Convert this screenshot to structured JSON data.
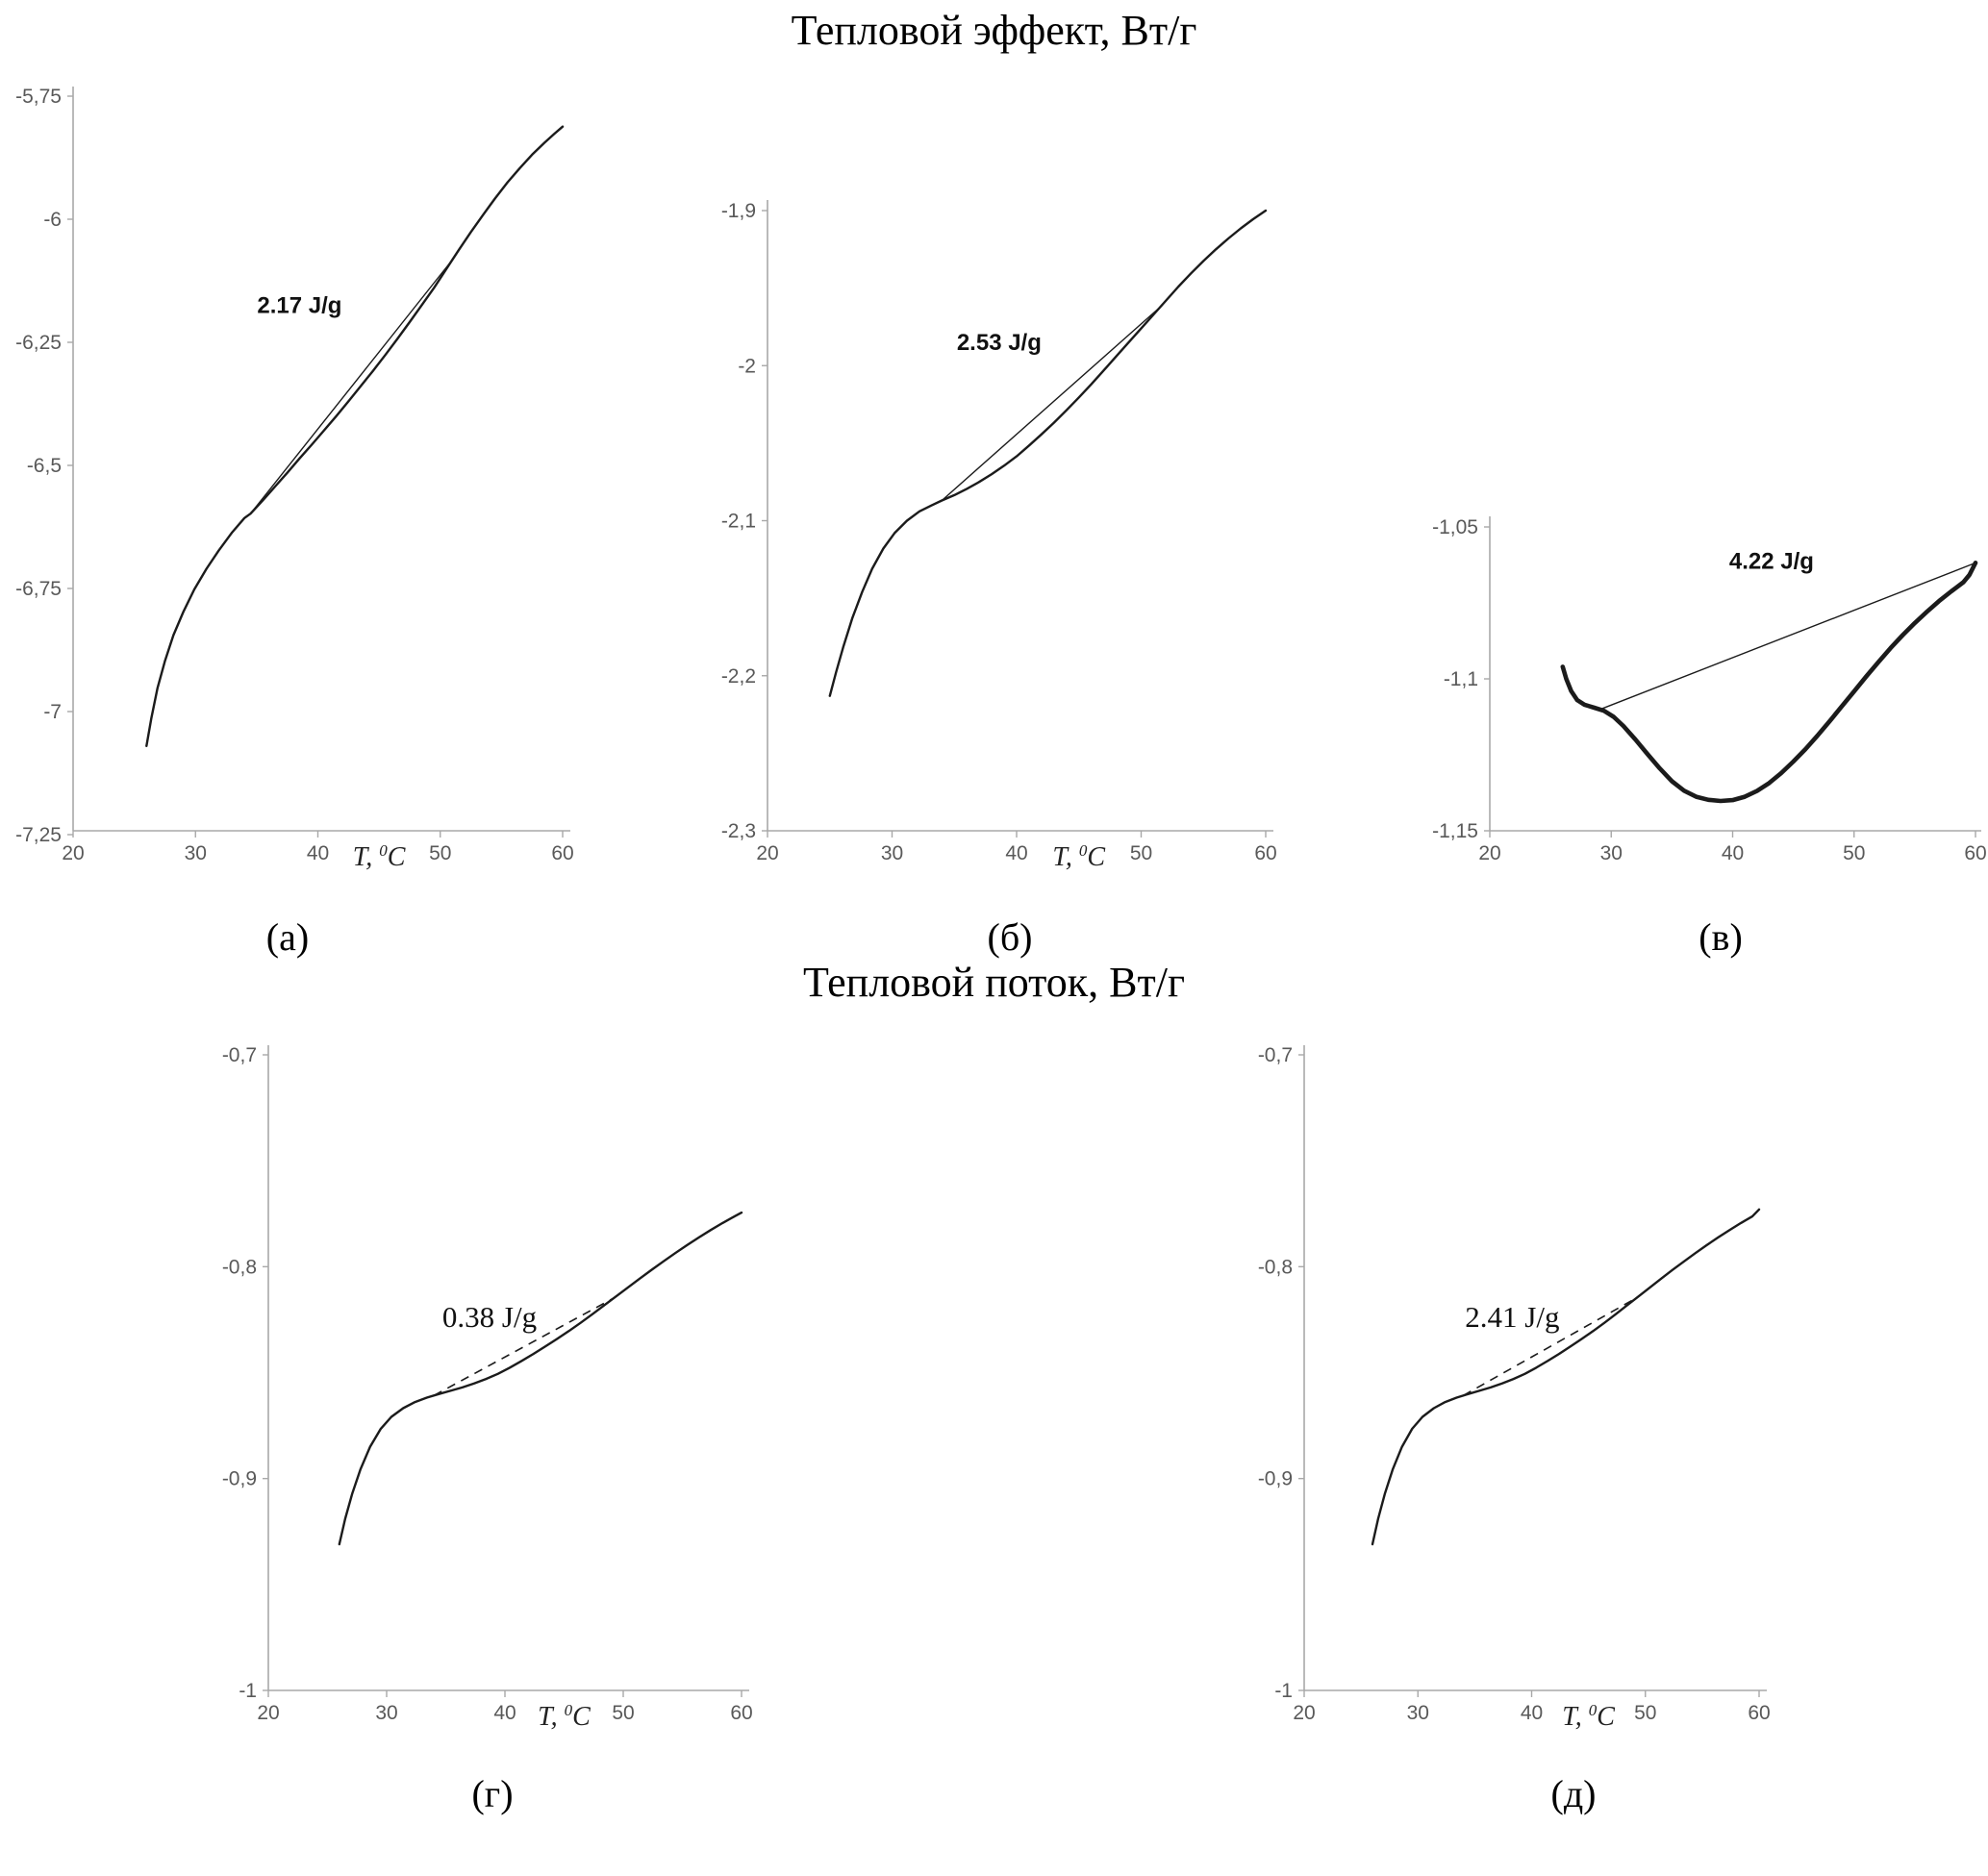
{
  "page": {
    "section1_title": "Тепловой эффект, Вт/г",
    "section2_title": "Тепловой поток, Вт/г"
  },
  "chart_data": [
    {
      "id": "a",
      "panel_label": "(а)",
      "type": "line",
      "xlabel": "T, ⁰C",
      "ylabel": "",
      "xlim": [
        20,
        60
      ],
      "ylim": [
        -7.25,
        -5.75
      ],
      "xticks": [
        20,
        30,
        40,
        50,
        60
      ],
      "yticks": [
        {
          "v": -5.75,
          "label": "-5,75"
        },
        {
          "v": -6,
          "label": "-6"
        },
        {
          "v": -6.25,
          "label": "-6,25"
        },
        {
          "v": -6.5,
          "label": "-6,5"
        },
        {
          "v": -6.75,
          "label": "-6,75"
        },
        {
          "v": -7,
          "label": "-7"
        },
        {
          "v": -7.25,
          "label": "-7,25"
        }
      ],
      "annotation": {
        "text": "2.17 J/g",
        "x": 38.5,
        "y": -6.19,
        "style": "sans-bold"
      },
      "series": [
        {
          "name": "dsc-curve",
          "style": "solid",
          "width": 2.4,
          "points": [
            [
              26,
              -7.07
            ],
            [
              26.4,
              -7.013
            ],
            [
              26.9,
              -6.952
            ],
            [
              27.5,
              -6.898
            ],
            [
              28.2,
              -6.845
            ],
            [
              29,
              -6.798
            ],
            [
              29.9,
              -6.752
            ],
            [
              30.9,
              -6.71
            ],
            [
              31.9,
              -6.673
            ],
            [
              33,
              -6.636
            ],
            [
              34,
              -6.607
            ],
            [
              34.5,
              -6.598
            ],
            [
              35.5,
              -6.571
            ],
            [
              36.5,
              -6.543
            ],
            [
              37.5,
              -6.515
            ],
            [
              38.5,
              -6.486
            ],
            [
              39.5,
              -6.458
            ],
            [
              40.5,
              -6.429
            ],
            [
              41.5,
              -6.4
            ],
            [
              42.5,
              -6.37
            ],
            [
              43.5,
              -6.339
            ],
            [
              44.5,
              -6.308
            ],
            [
              45.5,
              -6.276
            ],
            [
              46.5,
              -6.243
            ],
            [
              47.5,
              -6.209
            ],
            [
              48.5,
              -6.174
            ],
            [
              49.5,
              -6.139
            ],
            [
              50.5,
              -6.101
            ],
            [
              51.5,
              -6.063
            ],
            [
              52.5,
              -6.026
            ],
            [
              53.5,
              -5.991
            ],
            [
              54.5,
              -5.957
            ],
            [
              55.5,
              -5.925
            ],
            [
              56.5,
              -5.896
            ],
            [
              57.5,
              -5.869
            ],
            [
              58.5,
              -5.845
            ],
            [
              59.3,
              -5.827
            ],
            [
              60,
              -5.812
            ]
          ]
        },
        {
          "name": "integration-baseline",
          "style": "solid",
          "width": 1.4,
          "points": [
            [
              34.5,
              -6.598
            ],
            [
              51,
              -6.082
            ]
          ]
        }
      ]
    },
    {
      "id": "b",
      "panel_label": "(б)",
      "type": "line",
      "xlabel": "T, ⁰C",
      "ylabel": "",
      "xlim": [
        20,
        60
      ],
      "ylim": [
        -2.3,
        -1.9
      ],
      "xticks": [
        20,
        30,
        40,
        50,
        60
      ],
      "yticks": [
        {
          "v": -1.9,
          "label": "-1,9"
        },
        {
          "v": -2,
          "label": "-2"
        },
        {
          "v": -2.1,
          "label": "-2,1"
        },
        {
          "v": -2.2,
          "label": "-2,2"
        },
        {
          "v": -2.3,
          "label": "-2,3"
        }
      ],
      "annotation": {
        "text": "2.53 J/g",
        "x": 38.6,
        "y": -1.99,
        "style": "sans-bold"
      },
      "series": [
        {
          "name": "dsc-curve",
          "style": "solid",
          "width": 2.4,
          "points": [
            [
              25,
              -2.213
            ],
            [
              25.5,
              -2.198
            ],
            [
              26.1,
              -2.181
            ],
            [
              26.8,
              -2.163
            ],
            [
              27.6,
              -2.146
            ],
            [
              28.4,
              -2.131
            ],
            [
              29.3,
              -2.118
            ],
            [
              30.2,
              -2.108
            ],
            [
              31.2,
              -2.1
            ],
            [
              32.2,
              -2.094
            ],
            [
              33.2,
              -2.09
            ],
            [
              34,
              -2.087
            ],
            [
              35,
              -2.0835
            ],
            [
              36,
              -2.0795
            ],
            [
              37,
              -2.075
            ],
            [
              38,
              -2.07
            ],
            [
              39,
              -2.0645
            ],
            [
              40,
              -2.0585
            ],
            [
              41,
              -2.0515
            ],
            [
              42,
              -2.0443
            ],
            [
              43,
              -2.0368
            ],
            [
              44,
              -2.0288
            ],
            [
              45,
              -2.0205
            ],
            [
              46,
              -2.012
            ],
            [
              47,
              -2.003
            ],
            [
              48,
              -1.994
            ],
            [
              49,
              -1.985
            ],
            [
              50,
              -1.976
            ],
            [
              51,
              -1.967
            ],
            [
              52,
              -1.958
            ],
            [
              53,
              -1.949
            ],
            [
              54,
              -1.9405
            ],
            [
              55,
              -1.9325
            ],
            [
              56,
              -1.925
            ],
            [
              57,
              -1.918
            ],
            [
              58,
              -1.9115
            ],
            [
              59,
              -1.9055
            ],
            [
              60,
              -1.9
            ]
          ]
        },
        {
          "name": "integration-baseline",
          "style": "solid",
          "width": 1.4,
          "points": [
            [
              34,
              -2.087
            ],
            [
              51.7,
              -1.961
            ]
          ]
        }
      ]
    },
    {
      "id": "v",
      "panel_label": "(в)",
      "type": "line",
      "xlabel": "",
      "ylabel": "",
      "xlim": [
        20,
        60
      ],
      "ylim": [
        -1.15,
        -1.05
      ],
      "xticks": [
        20,
        30,
        40,
        50,
        60
      ],
      "yticks": [
        {
          "v": -1.05,
          "label": "-1,05"
        },
        {
          "v": -1.1,
          "label": "-1,1"
        },
        {
          "v": -1.15,
          "label": "-1,15"
        }
      ],
      "annotation": {
        "text": "4.22 J/g",
        "x": 43.2,
        "y": -1.0638,
        "style": "sans-bold"
      },
      "series": [
        {
          "name": "dsc-curve",
          "style": "solid",
          "width": 4.6,
          "points": [
            [
              26,
              -1.096
            ],
            [
              26.3,
              -1.1
            ],
            [
              26.7,
              -1.104
            ],
            [
              27.2,
              -1.107
            ],
            [
              27.8,
              -1.1085
            ],
            [
              28.6,
              -1.1095
            ],
            [
              29.4,
              -1.1105
            ],
            [
              30.2,
              -1.1125
            ],
            [
              31,
              -1.1155
            ],
            [
              32,
              -1.12
            ],
            [
              33,
              -1.1248
            ],
            [
              34,
              -1.1295
            ],
            [
              35,
              -1.1337
            ],
            [
              36,
              -1.1368
            ],
            [
              37,
              -1.1388
            ],
            [
              38,
              -1.1398
            ],
            [
              39,
              -1.1402
            ],
            [
              40,
              -1.1399
            ],
            [
              41,
              -1.1388
            ],
            [
              42,
              -1.1369
            ],
            [
              43,
              -1.1343
            ],
            [
              44,
              -1.131
            ],
            [
              45,
              -1.1272
            ],
            [
              46,
              -1.1231
            ],
            [
              47,
              -1.1186
            ],
            [
              48,
              -1.1139
            ],
            [
              49,
              -1.109
            ],
            [
              50,
              -1.1041
            ],
            [
              51,
              -1.0992
            ],
            [
              52,
              -1.0945
            ],
            [
              53,
              -1.0899
            ],
            [
              54,
              -1.0856
            ],
            [
              55,
              -1.0816
            ],
            [
              56,
              -1.0779
            ],
            [
              57,
              -1.0744
            ],
            [
              58,
              -1.0712
            ],
            [
              59,
              -1.0682
            ],
            [
              59.5,
              -1.0658
            ],
            [
              60,
              -1.0618
            ]
          ]
        },
        {
          "name": "integration-baseline",
          "style": "solid",
          "width": 1.4,
          "points": [
            [
              29,
              -1.1102
            ],
            [
              59.9,
              -1.062
            ]
          ]
        }
      ]
    },
    {
      "id": "g",
      "panel_label": "(г)",
      "type": "line",
      "xlabel": "T, ⁰C",
      "ylabel": "",
      "xlim": [
        20,
        60
      ],
      "ylim": [
        -1,
        -0.7
      ],
      "xticks": [
        20,
        30,
        40,
        50,
        60
      ],
      "yticks": [
        {
          "v": -0.7,
          "label": "-0,7"
        },
        {
          "v": -0.8,
          "label": "-0,8"
        },
        {
          "v": -0.9,
          "label": "-0,9"
        },
        {
          "v": -1,
          "label": "-1"
        }
      ],
      "annotation": {
        "text": "0.38 J/g",
        "x": 38.7,
        "y": -0.8285,
        "style": "serif"
      },
      "series": [
        {
          "name": "dsc-curve",
          "style": "solid",
          "width": 2.4,
          "points": [
            [
              26,
              -0.931
            ],
            [
              26.5,
              -0.919
            ],
            [
              27.1,
              -0.907
            ],
            [
              27.8,
              -0.8955
            ],
            [
              28.6,
              -0.885
            ],
            [
              29.5,
              -0.8765
            ],
            [
              30.4,
              -0.8709
            ],
            [
              31.4,
              -0.8668
            ],
            [
              32.4,
              -0.8639
            ],
            [
              33.4,
              -0.8618
            ],
            [
              34.4,
              -0.8601
            ],
            [
              35.4,
              -0.8586
            ],
            [
              36.4,
              -0.857
            ],
            [
              37.4,
              -0.8551
            ],
            [
              38.4,
              -0.853
            ],
            [
              39.4,
              -0.8506
            ],
            [
              40.4,
              -0.8477
            ],
            [
              41.4,
              -0.8445
            ],
            [
              42.4,
              -0.8412
            ],
            [
              43.4,
              -0.8377
            ],
            [
              44.4,
              -0.8341
            ],
            [
              45.4,
              -0.8304
            ],
            [
              46.4,
              -0.8265
            ],
            [
              47.4,
              -0.8224
            ],
            [
              48.4,
              -0.8182
            ],
            [
              49.4,
              -0.814
            ],
            [
              50.4,
              -0.8098
            ],
            [
              51.4,
              -0.8056
            ],
            [
              52.4,
              -0.8015
            ],
            [
              53.4,
              -0.7975
            ],
            [
              54.4,
              -0.7936
            ],
            [
              55.4,
              -0.7898
            ],
            [
              56.4,
              -0.7862
            ],
            [
              57.4,
              -0.7827
            ],
            [
              58.4,
              -0.7794
            ],
            [
              59.4,
              -0.7763
            ],
            [
              60,
              -0.7745
            ]
          ]
        },
        {
          "name": "integration-baseline",
          "style": "dashed",
          "width": 1.6,
          "points": [
            [
              34,
              -0.8608
            ],
            [
              49.2,
              -0.8148
            ]
          ]
        }
      ]
    },
    {
      "id": "d",
      "panel_label": "(д)",
      "type": "line",
      "xlabel": "T, ⁰C",
      "ylabel": "",
      "xlim": [
        20,
        60
      ],
      "ylim": [
        -1,
        -0.7
      ],
      "xticks": [
        20,
        30,
        40,
        50,
        60
      ],
      "yticks": [
        {
          "v": -0.7,
          "label": "-0,7"
        },
        {
          "v": -0.8,
          "label": "-0,8"
        },
        {
          "v": -0.9,
          "label": "-0,9"
        },
        {
          "v": -1,
          "label": "-1"
        }
      ],
      "annotation": {
        "text": "2.41 J/g",
        "x": 38.3,
        "y": -0.8285,
        "style": "serif"
      },
      "series": [
        {
          "name": "dsc-curve",
          "style": "solid",
          "width": 2.4,
          "points": [
            [
              26,
              -0.931
            ],
            [
              26.5,
              -0.919
            ],
            [
              27.1,
              -0.907
            ],
            [
              27.8,
              -0.8955
            ],
            [
              28.6,
              -0.885
            ],
            [
              29.5,
              -0.8765
            ],
            [
              30.4,
              -0.8709
            ],
            [
              31.4,
              -0.8668
            ],
            [
              32.4,
              -0.8639
            ],
            [
              33.4,
              -0.8618
            ],
            [
              34.4,
              -0.8601
            ],
            [
              35.4,
              -0.8586
            ],
            [
              36.4,
              -0.857
            ],
            [
              37.4,
              -0.8551
            ],
            [
              38.4,
              -0.853
            ],
            [
              39.4,
              -0.8506
            ],
            [
              40.4,
              -0.8477
            ],
            [
              41.4,
              -0.8445
            ],
            [
              42.4,
              -0.8412
            ],
            [
              43.4,
              -0.8377
            ],
            [
              44.4,
              -0.8341
            ],
            [
              45.4,
              -0.8304
            ],
            [
              46.4,
              -0.8265
            ],
            [
              47.4,
              -0.8224
            ],
            [
              48.4,
              -0.8182
            ],
            [
              49.4,
              -0.814
            ],
            [
              50.4,
              -0.8098
            ],
            [
              51.4,
              -0.8056
            ],
            [
              52.4,
              -0.8015
            ],
            [
              53.4,
              -0.7975
            ],
            [
              54.4,
              -0.7936
            ],
            [
              55.4,
              -0.7898
            ],
            [
              56.4,
              -0.7862
            ],
            [
              57.4,
              -0.7827
            ],
            [
              58.4,
              -0.7794
            ],
            [
              59.4,
              -0.7763
            ],
            [
              60,
              -0.773
            ]
          ]
        },
        {
          "name": "integration-baseline",
          "style": "dashed",
          "width": 1.6,
          "points": [
            [
              34,
              -0.8608
            ],
            [
              49.2,
              -0.8148
            ]
          ]
        }
      ]
    }
  ]
}
